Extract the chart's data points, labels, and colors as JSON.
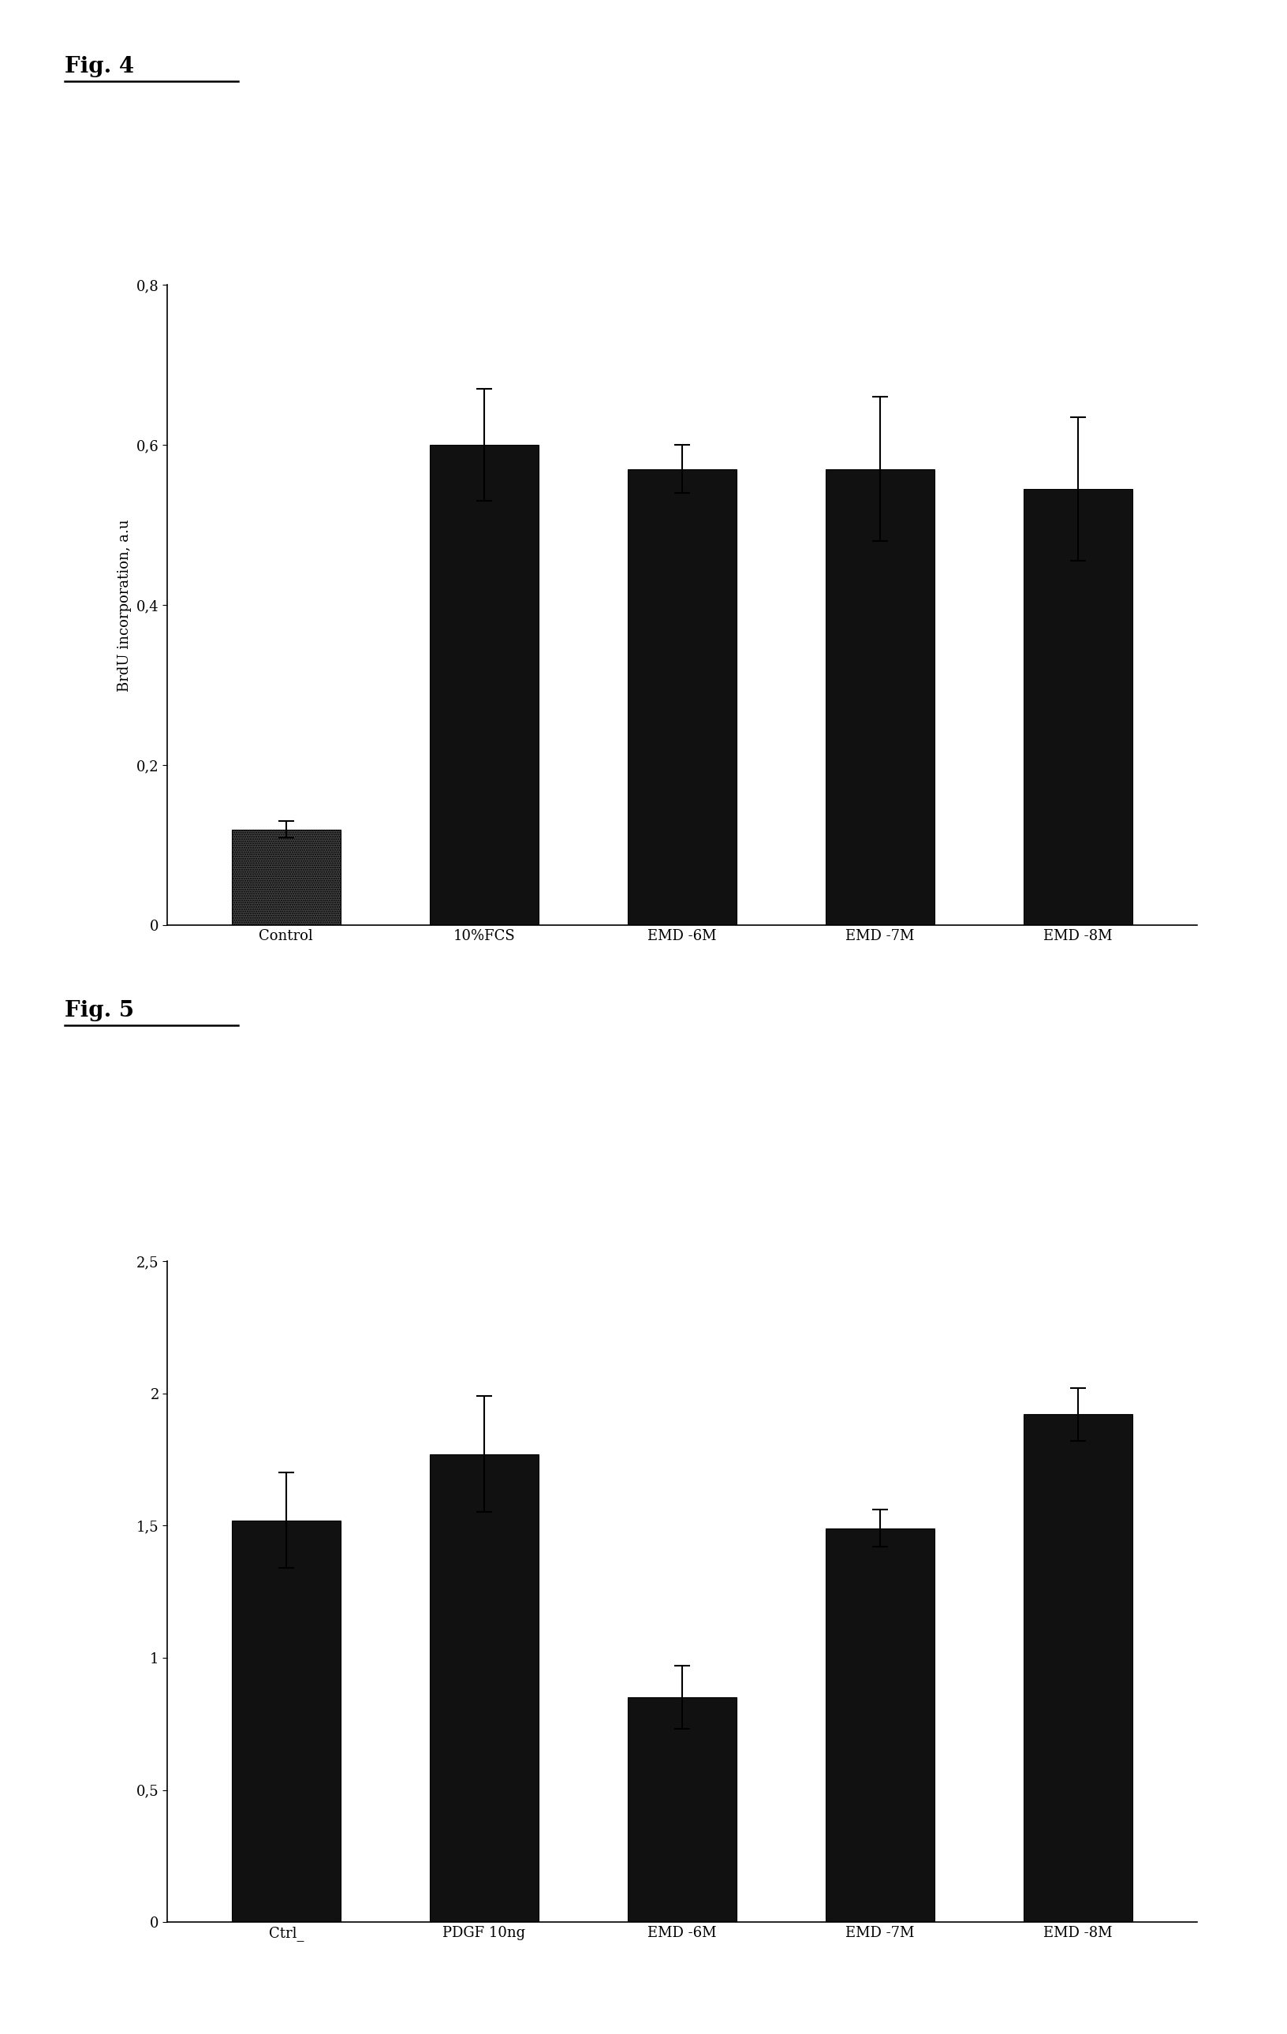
{
  "fig4": {
    "title": "Fig. 4",
    "categories": [
      "Control",
      "10%FCS",
      "EMD -6M",
      "EMD -7M",
      "EMD -8M"
    ],
    "values": [
      0.12,
      0.6,
      0.57,
      0.57,
      0.545
    ],
    "errors": [
      0.01,
      0.07,
      0.03,
      0.09,
      0.09
    ],
    "ylabel": "BrdU incorporation, a.u",
    "ylim": [
      0,
      0.8
    ],
    "yticks": [
      0,
      0.2,
      0.4,
      0.6,
      0.8
    ],
    "ytick_labels": [
      "0",
      "0,2",
      "0,4",
      "0,6",
      "0,8"
    ],
    "bar_color": "#111111",
    "hatch_bar_index": 0
  },
  "fig5": {
    "title": "Fig. 5",
    "categories": [
      "Ctrl_",
      "PDGF 10ng",
      "EMD -6M",
      "EMD -7M",
      "EMD -8M"
    ],
    "values": [
      1.52,
      1.77,
      0.85,
      1.49,
      1.92
    ],
    "errors": [
      0.18,
      0.22,
      0.12,
      0.07,
      0.1
    ],
    "ylabel": "",
    "ylim": [
      0,
      2.5
    ],
    "yticks": [
      0,
      0.5,
      1.0,
      1.5,
      2.0,
      2.5
    ],
    "ytick_labels": [
      "0",
      "0,5",
      "1",
      "1,5",
      "2",
      "2,5"
    ],
    "bar_color": "#111111"
  },
  "background_color": "#ffffff",
  "fig_title_fontsize": 20,
  "axis_label_fontsize": 13,
  "tick_fontsize": 13,
  "bar_width": 0.55
}
